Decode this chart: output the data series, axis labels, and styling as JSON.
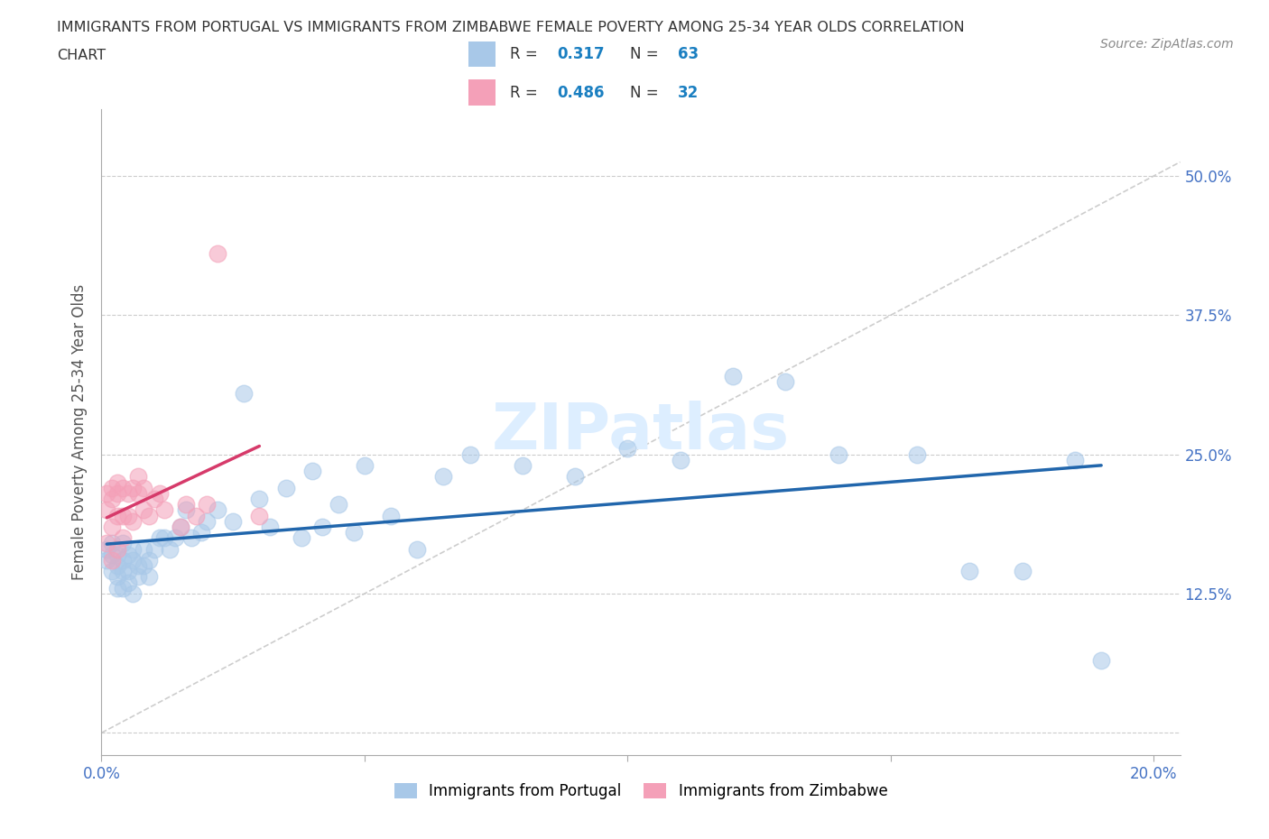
{
  "title_line1": "IMMIGRANTS FROM PORTUGAL VS IMMIGRANTS FROM ZIMBABWE FEMALE POVERTY AMONG 25-34 YEAR OLDS CORRELATION",
  "title_line2": "CHART",
  "source": "Source: ZipAtlas.com",
  "ylabel": "Female Poverty Among 25-34 Year Olds",
  "xlim": [
    0.0,
    0.205
  ],
  "ylim": [
    -0.02,
    0.56
  ],
  "xticks": [
    0.0,
    0.05,
    0.1,
    0.15,
    0.2
  ],
  "xtick_labels": [
    "0.0%",
    "",
    "",
    "",
    "20.0%"
  ],
  "ytick_vals": [
    0.0,
    0.125,
    0.25,
    0.375,
    0.5
  ],
  "ytick_right_labels": [
    "",
    "12.5%",
    "25.0%",
    "37.5%",
    "50.0%"
  ],
  "portugal_R": 0.317,
  "portugal_N": 63,
  "zimbabwe_R": 0.486,
  "zimbabwe_N": 32,
  "blue_color": "#a8c8e8",
  "pink_color": "#f4a0b8",
  "blue_line_color": "#2166ac",
  "pink_line_color": "#d63a6a",
  "diag_color": "#c8c8c8",
  "watermark_color": "#ddeeff",
  "legend_text_color": "#333333",
  "legend_R_N_color": "#1a7fc1",
  "portugal_x": [
    0.001,
    0.001,
    0.002,
    0.002,
    0.002,
    0.003,
    0.003,
    0.003,
    0.003,
    0.004,
    0.004,
    0.004,
    0.004,
    0.005,
    0.005,
    0.005,
    0.006,
    0.006,
    0.006,
    0.007,
    0.007,
    0.008,
    0.008,
    0.009,
    0.009,
    0.01,
    0.011,
    0.012,
    0.013,
    0.014,
    0.015,
    0.016,
    0.017,
    0.019,
    0.02,
    0.022,
    0.025,
    0.027,
    0.03,
    0.032,
    0.035,
    0.038,
    0.04,
    0.042,
    0.045,
    0.048,
    0.05,
    0.055,
    0.06,
    0.065,
    0.07,
    0.08,
    0.09,
    0.1,
    0.11,
    0.12,
    0.13,
    0.14,
    0.155,
    0.165,
    0.175,
    0.185,
    0.19
  ],
  "portugal_y": [
    0.155,
    0.165,
    0.16,
    0.17,
    0.145,
    0.15,
    0.16,
    0.14,
    0.13,
    0.155,
    0.145,
    0.17,
    0.13,
    0.16,
    0.145,
    0.135,
    0.155,
    0.165,
    0.125,
    0.15,
    0.14,
    0.165,
    0.15,
    0.155,
    0.14,
    0.165,
    0.175,
    0.175,
    0.165,
    0.175,
    0.185,
    0.2,
    0.175,
    0.18,
    0.19,
    0.2,
    0.19,
    0.305,
    0.21,
    0.185,
    0.22,
    0.175,
    0.235,
    0.185,
    0.205,
    0.18,
    0.24,
    0.195,
    0.165,
    0.23,
    0.25,
    0.24,
    0.23,
    0.255,
    0.245,
    0.32,
    0.315,
    0.25,
    0.25,
    0.145,
    0.145,
    0.245,
    0.065
  ],
  "zimbabwe_x": [
    0.001,
    0.001,
    0.001,
    0.002,
    0.002,
    0.002,
    0.002,
    0.003,
    0.003,
    0.003,
    0.003,
    0.004,
    0.004,
    0.004,
    0.005,
    0.005,
    0.006,
    0.006,
    0.007,
    0.007,
    0.008,
    0.008,
    0.009,
    0.01,
    0.011,
    0.012,
    0.015,
    0.016,
    0.018,
    0.02,
    0.022,
    0.03
  ],
  "zimbabwe_y": [
    0.17,
    0.2,
    0.215,
    0.155,
    0.185,
    0.21,
    0.22,
    0.165,
    0.195,
    0.215,
    0.225,
    0.175,
    0.195,
    0.22,
    0.195,
    0.215,
    0.19,
    0.22,
    0.215,
    0.23,
    0.2,
    0.22,
    0.195,
    0.21,
    0.215,
    0.2,
    0.185,
    0.205,
    0.195,
    0.205,
    0.43,
    0.195
  ]
}
